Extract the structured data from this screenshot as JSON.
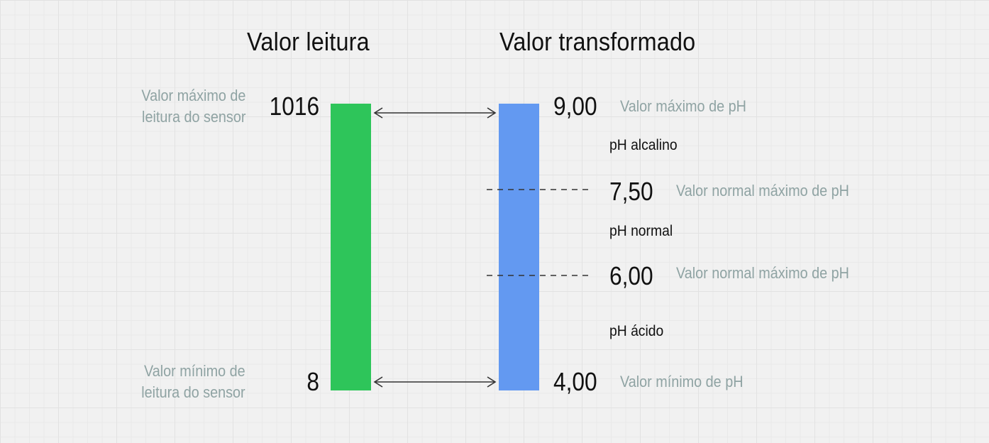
{
  "headings": {
    "left": "Valor leitura",
    "right": "Valor transformado"
  },
  "reading": {
    "max_value": "1016",
    "min_value": "8",
    "max_note_line1": "Valor máximo de",
    "max_note_line2": "leitura do sensor",
    "min_note_line1": "Valor mínimo de",
    "min_note_line2": "leitura do sensor",
    "bar_color": "#2ec55a"
  },
  "transformed": {
    "bar_color": "#6399f1",
    "levels": [
      {
        "value": "9,00",
        "note": "Valor máximo de pH"
      },
      {
        "value": "7,50",
        "note": "Valor normal máximo de pH"
      },
      {
        "value": "6,00",
        "note": "Valor normal máximo de pH"
      },
      {
        "value": "4,00",
        "note": "Valor mínimo de pH"
      }
    ],
    "zones": [
      "pH alcalino",
      "pH normal",
      "pH ácido"
    ]
  }
}
